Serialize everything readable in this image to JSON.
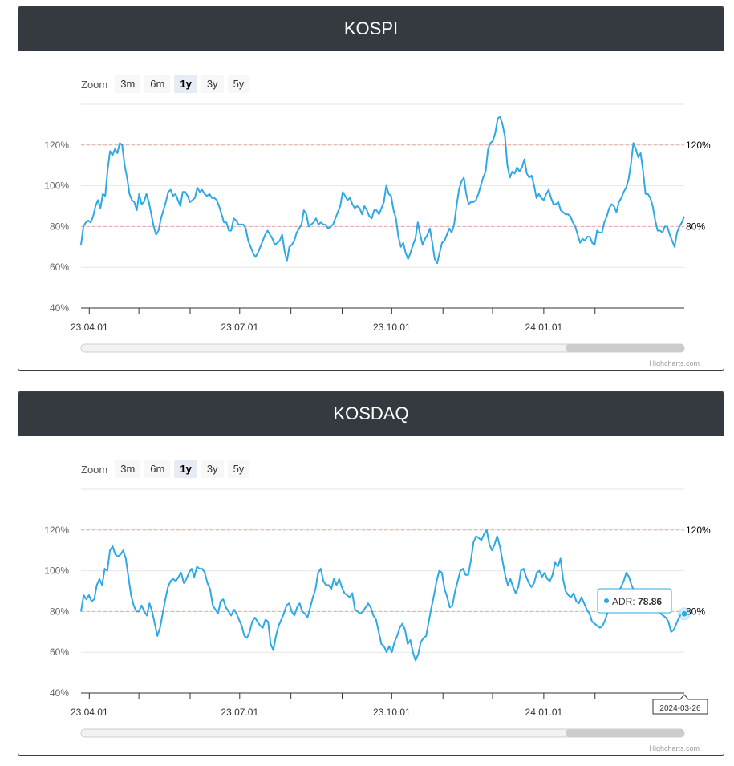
{
  "charts": [
    {
      "title": "KOSPI",
      "credits": "Highcharts.com",
      "zoom": {
        "label": "Zoom",
        "buttons": [
          "3m",
          "6m",
          "1y",
          "3y",
          "5y"
        ],
        "active": "1y"
      },
      "tooltip": null
    },
    {
      "title": "KOSDAQ",
      "credits": "Highcharts.com",
      "zoom": {
        "label": "Zoom",
        "buttons": [
          "3m",
          "6m",
          "1y",
          "3y",
          "5y"
        ],
        "active": "1y"
      },
      "tooltip": {
        "series": "ADR",
        "value": "78.86",
        "date": "2024-03-26"
      }
    }
  ],
  "colors": {
    "line": "#2fa8e6",
    "plotline": "#e8a8a0",
    "header": "#343a40"
  },
  "chart_data": [
    {
      "type": "line",
      "title": "KOSPI",
      "x_start": "2023-03-27",
      "x_end": "2024-03-26",
      "x_ticks": [
        "23.04.01",
        "23.07.01",
        "23.10.01",
        "24.01.01"
      ],
      "ylim": [
        40,
        140
      ],
      "y_ticks": [
        "40%",
        "60%",
        "80%",
        "100%",
        "120%"
      ],
      "plot_lines": [
        {
          "value": 120,
          "label": "120%"
        },
        {
          "value": 80,
          "label": "80%"
        }
      ],
      "grid": true,
      "series": [
        {
          "name": "ADR",
          "values": [
            71,
            80,
            82,
            83,
            82,
            85,
            90,
            93,
            89,
            96,
            95,
            108,
            117,
            115,
            118,
            116,
            121,
            120,
            110,
            104,
            96,
            93,
            92,
            88,
            96,
            91,
            92,
            96,
            92,
            86,
            80,
            76,
            78,
            84,
            88,
            92,
            97,
            98,
            95,
            96,
            93,
            90,
            97,
            97,
            95,
            92,
            93,
            94,
            99,
            97,
            98,
            96,
            95,
            96,
            94,
            94,
            93,
            90,
            86,
            82,
            82,
            78,
            78,
            84,
            83,
            81,
            81,
            81,
            79,
            73,
            70,
            67,
            65,
            67,
            70,
            73,
            76,
            78,
            76,
            74,
            71,
            72,
            73,
            76,
            68,
            63,
            70,
            71,
            73,
            77,
            79,
            81,
            88,
            86,
            80,
            81,
            82,
            84,
            81,
            82,
            81,
            81,
            79,
            80,
            81,
            84,
            87,
            90,
            97,
            95,
            93,
            94,
            91,
            89,
            90,
            89,
            86,
            90,
            88,
            85,
            84,
            88,
            88,
            86,
            89,
            92,
            100,
            96,
            95,
            88,
            84,
            75,
            70,
            72,
            67,
            64,
            67,
            71,
            74,
            82,
            76,
            71,
            74,
            76,
            79,
            72,
            64,
            62,
            67,
            72,
            73,
            76,
            79,
            77,
            81,
            90,
            98,
            102,
            104,
            96,
            91,
            92,
            92,
            93,
            96,
            100,
            104,
            107,
            118,
            121,
            122,
            126,
            133,
            134,
            130,
            124,
            110,
            104,
            107,
            106,
            109,
            107,
            109,
            113,
            106,
            104,
            105,
            100,
            94,
            96,
            94,
            93,
            96,
            98,
            94,
            91,
            91,
            92,
            88,
            87,
            86,
            86,
            85,
            82,
            80,
            76,
            72,
            74,
            73,
            75,
            75,
            72,
            71,
            78,
            77,
            77,
            82,
            85,
            89,
            91,
            90,
            87,
            92,
            94,
            97,
            99,
            103,
            111,
            121,
            118,
            114,
            116,
            107,
            96,
            96,
            94,
            90,
            83,
            78,
            78,
            77,
            80,
            80,
            76,
            73,
            70,
            77,
            80,
            82,
            85
          ]
        }
      ]
    },
    {
      "type": "line",
      "title": "KOSDAQ",
      "x_start": "2023-03-27",
      "x_end": "2024-03-26",
      "x_ticks": [
        "23.04.01",
        "23.07.01",
        "23.10.01",
        "24.01.01"
      ],
      "ylim": [
        40,
        140
      ],
      "y_ticks": [
        "40%",
        "60%",
        "80%",
        "100%",
        "120%"
      ],
      "plot_lines": [
        {
          "value": 120,
          "label": "120%"
        },
        {
          "value": 80,
          "label": "80%"
        }
      ],
      "grid": true,
      "series": [
        {
          "name": "ADR",
          "values": [
            80,
            88,
            86,
            88,
            85,
            86,
            93,
            96,
            93,
            101,
            100,
            110,
            112,
            108,
            107,
            108,
            110,
            106,
            97,
            88,
            83,
            80,
            80,
            83,
            80,
            78,
            84,
            80,
            74,
            68,
            72,
            79,
            86,
            92,
            95,
            96,
            95,
            97,
            99,
            94,
            96,
            99,
            101,
            97,
            102,
            101,
            101,
            99,
            94,
            91,
            83,
            81,
            79,
            85,
            86,
            82,
            80,
            78,
            81,
            79,
            76,
            73,
            68,
            67,
            70,
            75,
            77,
            75,
            73,
            72,
            76,
            75,
            64,
            61,
            68,
            73,
            76,
            79,
            83,
            84,
            80,
            78,
            82,
            84,
            80,
            79,
            77,
            82,
            87,
            91,
            99,
            101,
            95,
            93,
            93,
            91,
            96,
            93,
            96,
            92,
            89,
            88,
            87,
            89,
            81,
            80,
            79,
            80,
            82,
            84,
            82,
            78,
            76,
            70,
            64,
            63,
            60,
            63,
            60,
            65,
            68,
            72,
            74,
            71,
            64,
            66,
            60,
            56,
            59,
            65,
            67,
            68,
            75,
            82,
            88,
            95,
            100,
            99,
            91,
            87,
            82,
            83,
            90,
            95,
            100,
            101,
            98,
            98,
            105,
            114,
            117,
            116,
            115,
            118,
            120,
            113,
            110,
            113,
            117,
            112,
            105,
            98,
            93,
            96,
            92,
            89,
            92,
            100,
            101,
            97,
            94,
            92,
            94,
            99,
            100,
            97,
            99,
            96,
            95,
            98,
            104,
            102,
            106,
            96,
            90,
            88,
            87,
            89,
            85,
            84,
            87,
            84,
            81,
            79,
            75,
            74,
            73,
            72,
            73,
            76,
            80,
            82,
            85,
            87,
            90,
            92,
            95,
            99,
            97,
            93,
            90,
            88,
            86,
            85,
            89,
            88,
            85,
            84,
            83,
            81,
            79,
            78,
            77,
            75,
            70,
            71,
            74,
            77,
            79,
            78.86
          ]
        }
      ]
    }
  ]
}
